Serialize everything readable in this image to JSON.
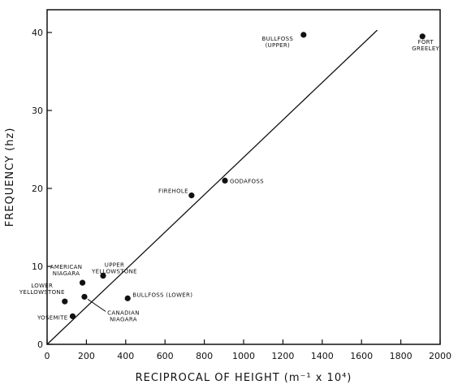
{
  "chart_data": {
    "type": "scatter",
    "xlabel": "RECIPROCAL OF HEIGHT (m⁻¹ x 10⁴)",
    "ylabel": "FREQUENCY (hz)",
    "xlim": [
      0,
      2000
    ],
    "ylim": [
      0,
      42
    ],
    "xticks": [
      0,
      200,
      400,
      600,
      800,
      1000,
      1200,
      1400,
      1600,
      1800,
      2000
    ],
    "yticks": [
      0,
      10,
      20,
      30,
      40
    ],
    "grid": false,
    "legend": "none",
    "points": [
      {
        "label": [
          "BULLFOSS",
          "(UPPER)"
        ],
        "x": 1305,
        "y": 39.7
      },
      {
        "label": [
          "FORT",
          "GREELEY"
        ],
        "x": 1910,
        "y": 39.5
      },
      {
        "label": [
          "FIREHOLE"
        ],
        "x": 735,
        "y": 19.1
      },
      {
        "label": [
          "GODAFOSS"
        ],
        "x": 905,
        "y": 21.0
      },
      {
        "label": [
          "UPPER",
          "YELLOWSTONE"
        ],
        "x": 285,
        "y": 8.8
      },
      {
        "label": [
          "AMERICAN",
          "NIAGARA"
        ],
        "x": 180,
        "y": 7.9
      },
      {
        "label": [
          "BULLFOSS (LOWER)"
        ],
        "x": 410,
        "y": 5.9
      },
      {
        "label": [
          "LOWER",
          "YELLOWSTONE"
        ],
        "x": 90,
        "y": 5.5
      },
      {
        "label": [
          "CANADIAN",
          "NIAGARA"
        ],
        "x": 190,
        "y": 6.1
      },
      {
        "label": [
          "YOSEMITE"
        ],
        "x": 130,
        "y": 3.6
      }
    ],
    "fit_line": {
      "x": [
        0,
        1680
      ],
      "y": [
        0,
        40.3
      ]
    }
  },
  "colors": {
    "ink": "#111111",
    "background": "#ffffff"
  }
}
